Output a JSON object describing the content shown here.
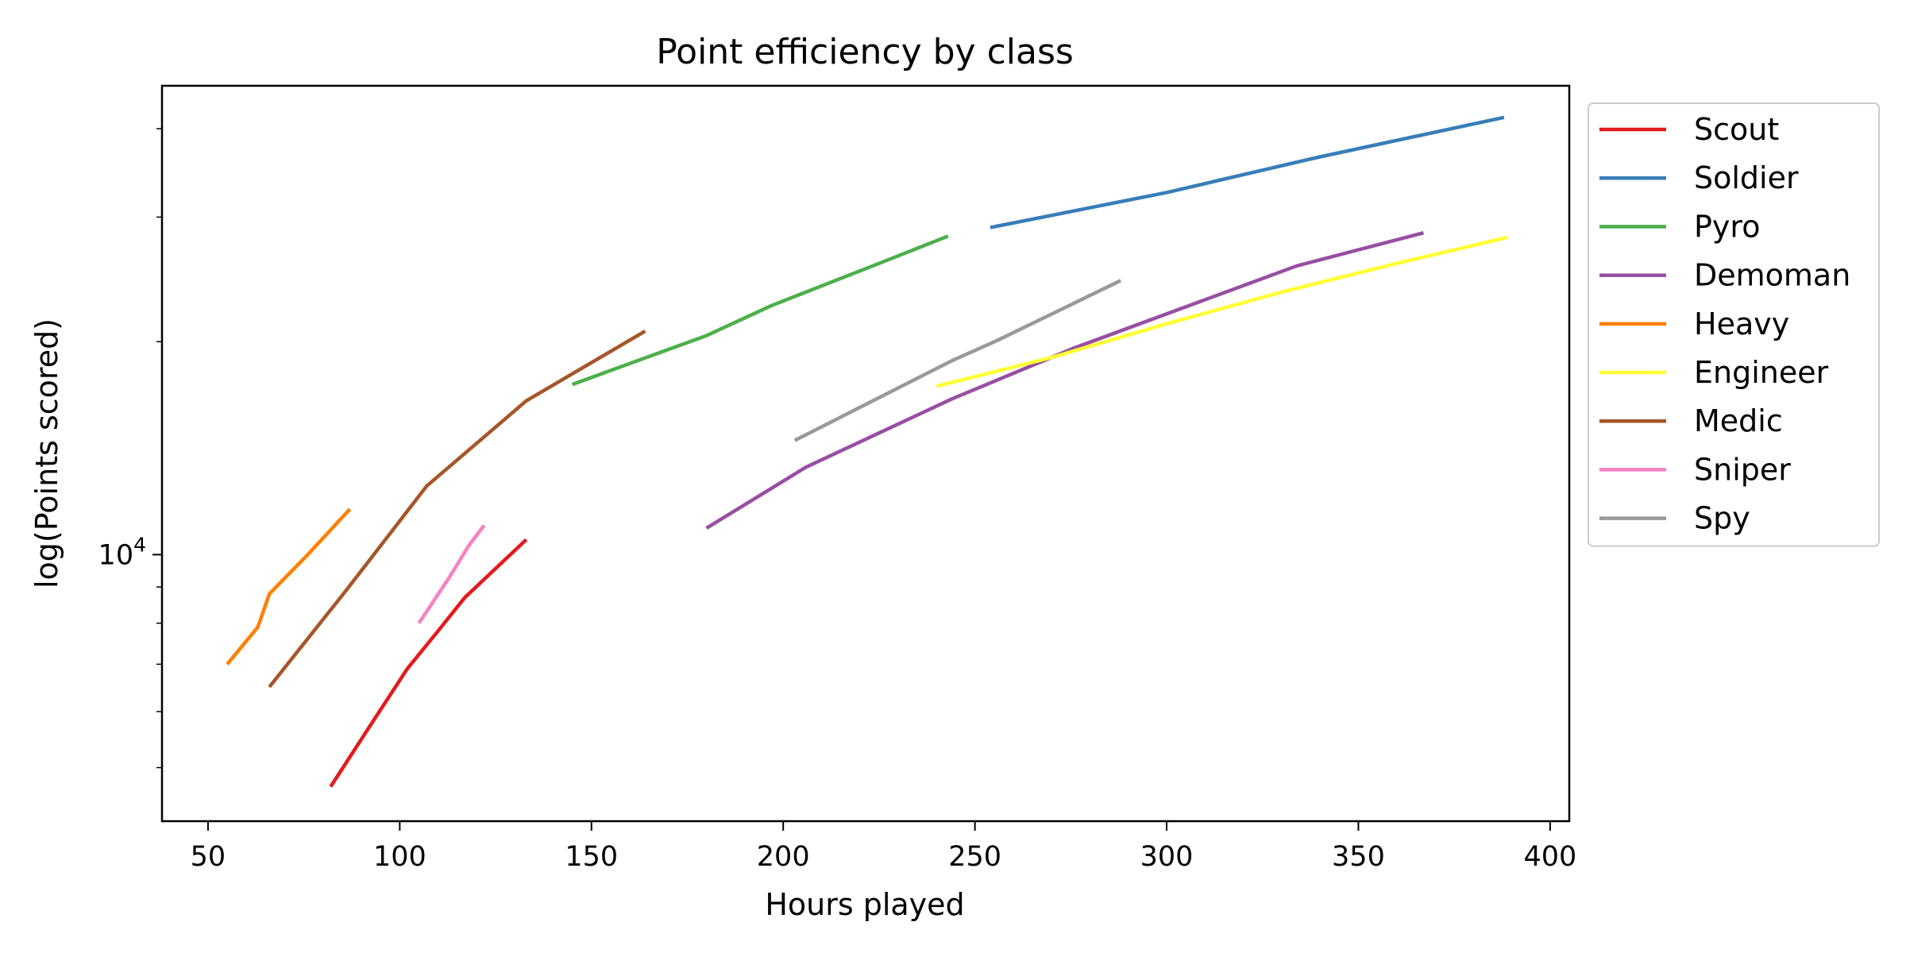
{
  "chart_data": {
    "type": "line",
    "title": "Point efficiency by class",
    "xlabel": "Hours played",
    "ylabel": "log(Points scored)",
    "xlim": [
      38,
      405
    ],
    "ylim": [
      4200,
      46000
    ],
    "yscale": "log",
    "xticks": [
      50,
      100,
      150,
      200,
      250,
      300,
      350,
      400
    ],
    "yticks_major": [
      {
        "value": 10000,
        "base": "10",
        "exp": "4"
      }
    ],
    "yticks_minor": [
      5000,
      6000,
      7000,
      8000,
      9000,
      20000,
      30000,
      40000
    ],
    "grid": false,
    "legend_position": "outside-right",
    "series": [
      {
        "name": "Scout",
        "color": "#e41a1c",
        "points": [
          [
            82,
            4700
          ],
          [
            92,
            5700
          ],
          [
            102,
            6900
          ],
          [
            110,
            7800
          ],
          [
            117,
            8700
          ],
          [
            133,
            10500
          ]
        ]
      },
      {
        "name": "Soldier",
        "color": "#377eb8",
        "points": [
          [
            254,
            29000
          ],
          [
            300,
            32500
          ],
          [
            340,
            36500
          ],
          [
            388,
            41500
          ]
        ]
      },
      {
        "name": "Pyro",
        "color": "#4daf4a",
        "points": [
          [
            145,
            17400
          ],
          [
            180,
            20400
          ],
          [
            197,
            22500
          ],
          [
            225,
            25800
          ],
          [
            243,
            28200
          ]
        ]
      },
      {
        "name": "Demoman",
        "color": "#984ea3",
        "points": [
          [
            180,
            10900
          ],
          [
            206,
            13300
          ],
          [
            244,
            16600
          ],
          [
            276,
            19600
          ],
          [
            334,
            25600
          ],
          [
            367,
            28500
          ]
        ]
      },
      {
        "name": "Heavy",
        "color": "#ff7f00",
        "points": [
          [
            55,
            7000
          ],
          [
            63,
            7900
          ],
          [
            66,
            8800
          ],
          [
            76,
            10000
          ],
          [
            87,
            11600
          ]
        ]
      },
      {
        "name": "Engineer",
        "color": "#ffff33",
        "points": [
          [
            240,
            17300
          ],
          [
            270,
            19000
          ],
          [
            300,
            21200
          ],
          [
            330,
            23500
          ],
          [
            360,
            25800
          ],
          [
            389,
            28100
          ]
        ]
      },
      {
        "name": "Medic",
        "color": "#a65628",
        "points": [
          [
            66,
            6500
          ],
          [
            86,
            8900
          ],
          [
            107,
            12500
          ],
          [
            133,
            16500
          ],
          [
            164,
            20700
          ]
        ]
      },
      {
        "name": "Sniper",
        "color": "#f781bf",
        "points": [
          [
            105,
            8000
          ],
          [
            113,
            9300
          ],
          [
            118,
            10300
          ],
          [
            122,
            11000
          ]
        ]
      },
      {
        "name": "Spy",
        "color": "#999999",
        "points": [
          [
            203,
            14500
          ],
          [
            244,
            18800
          ],
          [
            256,
            20100
          ],
          [
            288,
            24400
          ]
        ]
      }
    ]
  }
}
